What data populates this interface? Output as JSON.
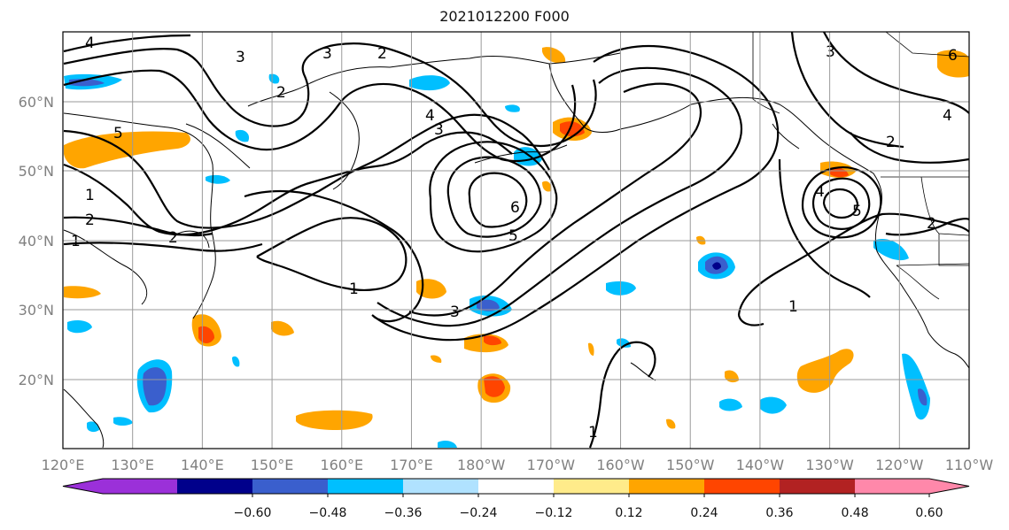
{
  "title": "2021012200 F000",
  "lat_labels": [
    "60°N",
    "50°N",
    "40°N",
    "30°N",
    "20°N"
  ],
  "lon_labels": [
    "120°E",
    "130°E",
    "140°E",
    "150°E",
    "160°E",
    "170°E",
    "180°W",
    "170°W",
    "160°W",
    "150°W",
    "140°W",
    "130°W",
    "120°W",
    "110°W"
  ],
  "contour_labels": [
    "4",
    "3",
    "2",
    "2",
    "3",
    "4",
    "3",
    "5",
    "6",
    "5",
    "1",
    "3",
    "1",
    "2",
    "2",
    "1",
    "2",
    "4",
    "5",
    "2",
    "1",
    "3",
    "4",
    "6",
    "1"
  ],
  "colorbar": {
    "colors": [
      "#9b30d9",
      "#00008b",
      "#3a5fcd",
      "#00bfff",
      "#b0e2ff",
      "#ffffff",
      "#ffeb8a",
      "#ffa500",
      "#ff4500",
      "#b22222",
      "#ff88aa"
    ],
    "tick_labels": [
      "−0.60",
      "−0.48",
      "−0.36",
      "−0.24",
      "−0.12",
      "0.12",
      "0.24",
      "0.36",
      "0.48",
      "0.60"
    ]
  }
}
